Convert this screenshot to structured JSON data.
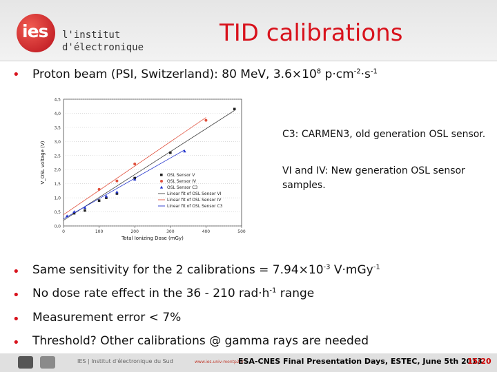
{
  "header": {
    "logo_short": "ies",
    "logo_line1": "l'institut",
    "logo_line2": "d'électronique",
    "title": "TID calibrations"
  },
  "intro_bullet": {
    "prefix": "Proton beam (PSI, Switzerland): 80 MeV, 3.6×10",
    "exp1": "8",
    "middle": " p·cm",
    "exp2": "-2",
    "middle2": "·s",
    "exp3": "-1"
  },
  "side_notes": [
    "C3: CARMEN3, old generation OSL sensor.",
    "VI and IV: New generation OSL sensor samples."
  ],
  "bullets": [
    {
      "a": "Same sensitivity for the 2 calibrations = 7.94×10",
      "s1": "-3",
      "b": " V·mGy",
      "s2": "-1",
      "c": ""
    },
    {
      "a": "No dose rate effect in the 36 - 210 rad·h",
      "s1": "-1",
      "b": " range",
      "s2": "",
      "c": ""
    },
    {
      "a": "Measurement error < 7%",
      "s1": "",
      "b": "",
      "s2": "",
      "c": ""
    },
    {
      "a": "Threshold? Other calibrations @ gamma rays are needed",
      "s1": "",
      "b": "",
      "s2": "",
      "c": ""
    }
  ],
  "footer": {
    "institute": "IES | Institut d'électronique du Sud",
    "url": "www.ies.univ-montp2.fr",
    "event": "ESA-CNES Final Presentation Days, ESTEC, June 5th 2013",
    "page": "15/20"
  },
  "colors": {
    "accent": "#d8121c",
    "sensor_v": "#222222",
    "sensor_iv": "#e0503c",
    "sensor_c3": "#2233cc"
  },
  "chart_data": {
    "type": "scatter",
    "xlabel": "Total Ionizing Dose (mGy)",
    "ylabel": "V_OSL voltage (V)",
    "xlim": [
      0,
      500
    ],
    "ylim": [
      0,
      4.5
    ],
    "x_ticks": [
      "0",
      "100",
      "200",
      "300",
      "400",
      "500"
    ],
    "y_ticks": [
      "0,0",
      "0,5",
      "1,0",
      "1,5",
      "2,0",
      "2,5",
      "3,0",
      "3,5",
      "4,0",
      "4,5"
    ],
    "legend": [
      "OSL Sensor V",
      "OSL Sensor IV",
      "OSL Sensor C3",
      "Linear fit of OSL Sensor VI",
      "Linear fit of OSL Sensor IV",
      "Linear fit of OSL Sensor C3"
    ],
    "series": [
      {
        "name": "OSL Sensor V",
        "color": "#222222",
        "marker": "square",
        "x": [
          30,
          60,
          100,
          120,
          150,
          200,
          300,
          480
        ],
        "y": [
          0.45,
          0.55,
          0.9,
          1.0,
          1.15,
          1.7,
          2.6,
          4.15
        ]
      },
      {
        "name": "OSL Sensor IV",
        "color": "#e0503c",
        "marker": "circle",
        "x": [
          100,
          150,
          200,
          400
        ],
        "y": [
          1.3,
          1.6,
          2.2,
          3.75
        ]
      },
      {
        "name": "OSL Sensor C3",
        "color": "#2233cc",
        "marker": "triangle",
        "x": [
          10,
          30,
          60,
          120,
          150,
          200,
          340
        ],
        "y": [
          0.35,
          0.5,
          0.65,
          1.05,
          1.2,
          1.65,
          2.65
        ]
      }
    ],
    "fits": [
      {
        "name": "Linear fit of OSL Sensor VI",
        "color": "#444444",
        "x": [
          0,
          480
        ],
        "y": [
          0.2,
          4.1
        ]
      },
      {
        "name": "Linear fit of OSL Sensor IV",
        "color": "#e0503c",
        "x": [
          0,
          400
        ],
        "y": [
          0.4,
          3.85
        ]
      },
      {
        "name": "Linear fit of OSL Sensor C3",
        "color": "#2233cc",
        "x": [
          0,
          340
        ],
        "y": [
          0.25,
          2.7
        ]
      }
    ]
  }
}
